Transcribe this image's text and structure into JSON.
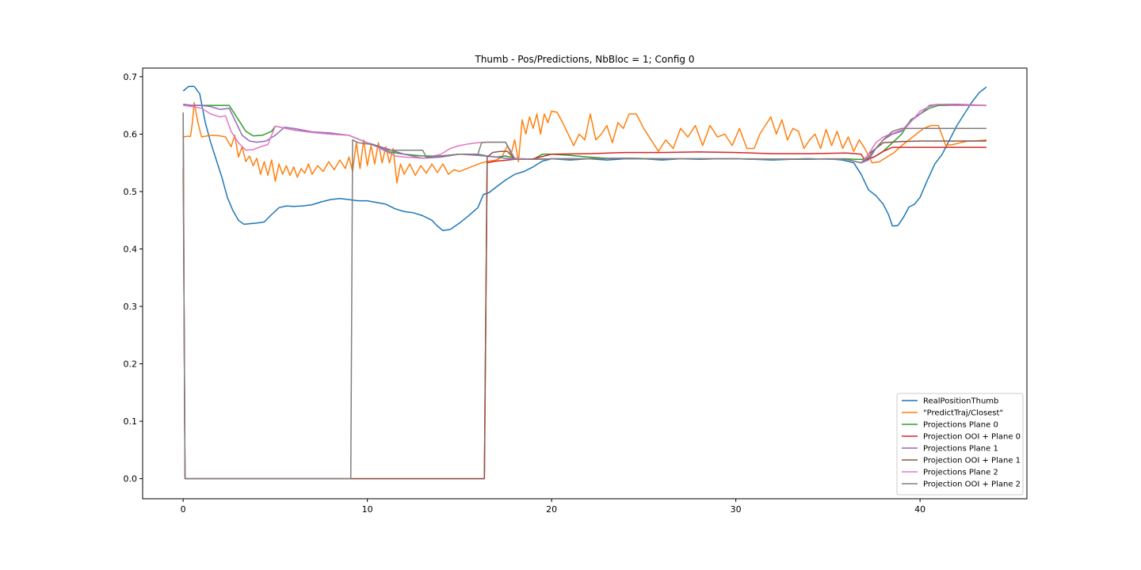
{
  "chart_data": {
    "type": "line",
    "title": "Thumb - Pos/Predictions, NbBloc = 1; Config 0",
    "xlabel": "",
    "ylabel": "",
    "xlim": [
      -2.2,
      45.8
    ],
    "ylim": [
      -0.035,
      0.715
    ],
    "xticks": [
      0,
      10,
      20,
      30,
      40
    ],
    "yticks": [
      0.0,
      0.1,
      0.2,
      0.3,
      0.4,
      0.5,
      0.6,
      0.7
    ],
    "grid": false,
    "legend_position": "lower right",
    "series": [
      {
        "name": "RealPositionThumb",
        "color": "#1f77b4",
        "x": [
          0,
          0.3,
          0.6,
          0.9,
          1.2,
          1.5,
          1.8,
          2.1,
          2.4,
          2.7,
          3.0,
          3.3,
          3.6,
          4.0,
          4.4,
          4.8,
          5.2,
          5.6,
          6.0,
          6.5,
          7.0,
          7.5,
          8.0,
          8.5,
          9.0,
          9.5,
          10.0,
          10.5,
          11.0,
          11.5,
          12.0,
          12.5,
          13.0,
          13.5,
          13.8,
          14.1,
          14.5,
          15.0,
          15.5,
          16.0,
          16.3,
          16.6,
          17.0,
          17.5,
          18.0,
          18.5,
          19.0,
          19.5,
          20.0,
          21.0,
          22.0,
          23.0,
          24.0,
          25.0,
          26.0,
          27.0,
          28.0,
          29.0,
          30.0,
          31.0,
          32.0,
          33.0,
          34.0,
          35.0,
          35.8,
          36.4,
          36.8,
          37.2,
          37.6,
          38.0,
          38.3,
          38.5,
          38.8,
          39.1,
          39.4,
          39.7,
          40.0,
          40.4,
          40.8,
          41.2,
          41.6,
          42.0,
          42.4,
          42.8,
          43.2,
          43.6
        ],
        "values": [
          0.675,
          0.683,
          0.683,
          0.67,
          0.62,
          0.585,
          0.555,
          0.525,
          0.49,
          0.467,
          0.45,
          0.443,
          0.444,
          0.445,
          0.447,
          0.46,
          0.472,
          0.475,
          0.474,
          0.475,
          0.477,
          0.482,
          0.486,
          0.488,
          0.486,
          0.484,
          0.484,
          0.481,
          0.478,
          0.47,
          0.465,
          0.463,
          0.458,
          0.45,
          0.44,
          0.432,
          0.434,
          0.445,
          0.458,
          0.472,
          0.495,
          0.498,
          0.508,
          0.52,
          0.53,
          0.535,
          0.543,
          0.553,
          0.557,
          0.555,
          0.557,
          0.555,
          0.557,
          0.557,
          0.555,
          0.557,
          0.556,
          0.557,
          0.557,
          0.556,
          0.555,
          0.556,
          0.556,
          0.557,
          0.555,
          0.55,
          0.53,
          0.503,
          0.493,
          0.478,
          0.459,
          0.44,
          0.441,
          0.455,
          0.473,
          0.478,
          0.49,
          0.52,
          0.548,
          0.565,
          0.59,
          0.615,
          0.635,
          0.655,
          0.672,
          0.682
        ]
      },
      {
        "name": "\"PredictTraj/Closest\"",
        "color": "#ff7f0e",
        "x": [
          0,
          0.2,
          0.4,
          0.5,
          0.6,
          0.8,
          1.0,
          1.3,
          1.6,
          2.0,
          2.3,
          2.6,
          2.8,
          3.0,
          3.2,
          3.4,
          3.6,
          3.8,
          4.0,
          4.2,
          4.4,
          4.6,
          4.8,
          5.0,
          5.2,
          5.4,
          5.6,
          5.8,
          6.0,
          6.2,
          6.4,
          6.6,
          6.8,
          7.0,
          7.3,
          7.6,
          7.9,
          8.2,
          8.5,
          8.8,
          9.0,
          9.2,
          9.4,
          9.6,
          9.8,
          10.0,
          10.2,
          10.4,
          10.6,
          10.8,
          11.0,
          11.2,
          11.4,
          11.6,
          11.8,
          12.0,
          12.3,
          12.6,
          12.9,
          13.2,
          13.5,
          13.8,
          14.1,
          14.4,
          14.7,
          15.0,
          15.4,
          15.8,
          16.2,
          16.6,
          17.0,
          17.3,
          17.6,
          17.8,
          18.0,
          18.2,
          18.4,
          18.6,
          18.8,
          19.0,
          19.2,
          19.4,
          19.6,
          19.8,
          20.0,
          20.3,
          20.6,
          20.9,
          21.2,
          21.5,
          21.8,
          22.1,
          22.4,
          22.7,
          23.0,
          23.3,
          23.6,
          23.9,
          24.2,
          24.6,
          25.0,
          25.4,
          25.8,
          26.2,
          26.6,
          27.0,
          27.4,
          27.8,
          28.2,
          28.6,
          29.0,
          29.4,
          29.8,
          30.2,
          30.6,
          31.0,
          31.3,
          31.6,
          31.9,
          32.2,
          32.5,
          32.8,
          33.1,
          33.4,
          33.7,
          34.0,
          34.3,
          34.6,
          34.9,
          35.2,
          35.5,
          35.8,
          36.1,
          36.4,
          36.7,
          37.0,
          37.4,
          37.8,
          38.2,
          38.6,
          39.0,
          39.4,
          39.8,
          40.2,
          40.6,
          41.0,
          41.4,
          41.8,
          42.2,
          42.6,
          43.0,
          43.6
        ],
        "values": [
          0.595,
          0.596,
          0.596,
          0.62,
          0.655,
          0.62,
          0.595,
          0.597,
          0.598,
          0.597,
          0.595,
          0.578,
          0.598,
          0.56,
          0.578,
          0.552,
          0.562,
          0.545,
          0.558,
          0.53,
          0.552,
          0.528,
          0.555,
          0.518,
          0.548,
          0.53,
          0.545,
          0.528,
          0.543,
          0.525,
          0.54,
          0.532,
          0.548,
          0.53,
          0.545,
          0.535,
          0.552,
          0.538,
          0.555,
          0.54,
          0.56,
          0.535,
          0.585,
          0.54,
          0.59,
          0.545,
          0.58,
          0.548,
          0.585,
          0.55,
          0.578,
          0.55,
          0.575,
          0.515,
          0.548,
          0.53,
          0.548,
          0.528,
          0.545,
          0.532,
          0.548,
          0.533,
          0.548,
          0.53,
          0.538,
          0.535,
          0.54,
          0.545,
          0.55,
          0.553,
          0.555,
          0.56,
          0.58,
          0.565,
          0.59,
          0.552,
          0.625,
          0.6,
          0.63,
          0.61,
          0.635,
          0.6,
          0.635,
          0.62,
          0.64,
          0.638,
          0.62,
          0.6,
          0.58,
          0.6,
          0.59,
          0.635,
          0.59,
          0.6,
          0.615,
          0.585,
          0.62,
          0.61,
          0.635,
          0.635,
          0.61,
          0.59,
          0.57,
          0.59,
          0.575,
          0.61,
          0.595,
          0.615,
          0.58,
          0.615,
          0.595,
          0.6,
          0.58,
          0.61,
          0.575,
          0.575,
          0.6,
          0.615,
          0.63,
          0.6,
          0.625,
          0.59,
          0.61,
          0.605,
          0.575,
          0.59,
          0.6,
          0.575,
          0.608,
          0.58,
          0.605,
          0.575,
          0.595,
          0.57,
          0.59,
          0.575,
          0.55,
          0.552,
          0.56,
          0.568,
          0.58,
          0.59,
          0.6,
          0.61,
          0.615,
          0.615,
          0.58,
          0.582,
          0.585,
          0.588,
          0.588,
          0.59
        ]
      },
      {
        "name": "Projections Plane 0",
        "color": "#2ca02c",
        "x": [
          0,
          0.3,
          1.0,
          2.0,
          2.5,
          3.0,
          3.4,
          3.8,
          4.3,
          4.8,
          5.0,
          6.0,
          7.0,
          8.0,
          9.0,
          10.0,
          10.5,
          11.0,
          12.0,
          13.0,
          14.0,
          15.0,
          16.0,
          16.5,
          17.0,
          17.5,
          18.0,
          19.0,
          19.5,
          20.0,
          21.0,
          22.0,
          23.0,
          25.0,
          27.0,
          29.0,
          31.0,
          33.0,
          35.0,
          36.0,
          36.5,
          37.0,
          37.5,
          38.0,
          38.5,
          39.0,
          39.5,
          40.0,
          40.5,
          41.0,
          42.0,
          43.6
        ],
        "values": [
          0.652,
          0.65,
          0.65,
          0.65,
          0.65,
          0.625,
          0.605,
          0.597,
          0.598,
          0.605,
          0.614,
          0.607,
          0.603,
          0.6,
          0.598,
          0.585,
          0.58,
          0.57,
          0.565,
          0.562,
          0.562,
          0.565,
          0.565,
          0.562,
          0.56,
          0.562,
          0.558,
          0.556,
          0.565,
          0.565,
          0.563,
          0.56,
          0.558,
          0.557,
          0.557,
          0.557,
          0.557,
          0.556,
          0.557,
          0.557,
          0.556,
          0.556,
          0.56,
          0.57,
          0.585,
          0.6,
          0.625,
          0.635,
          0.645,
          0.65,
          0.65,
          0.65
        ]
      },
      {
        "name": "Projection OOI + Plane 0",
        "color": "#d62728",
        "x": [
          0,
          0.05,
          0.1,
          1.0,
          5.0,
          10.0,
          14.0,
          16.0,
          16.2,
          16.35,
          16.5,
          17.0,
          18.0,
          19.0,
          20.0,
          22.0,
          24.0,
          26.0,
          28.0,
          30.0,
          32.0,
          34.0,
          36.0,
          36.8,
          37.0,
          37.5,
          38.0,
          38.5,
          40.0,
          42.0,
          43.6
        ],
        "values": [
          0.54,
          0.3,
          0.0,
          0.0,
          0.0,
          0.0,
          0.0,
          0.0,
          0.0,
          0.0,
          0.55,
          0.553,
          0.556,
          0.557,
          0.565,
          0.566,
          0.568,
          0.568,
          0.569,
          0.568,
          0.566,
          0.566,
          0.567,
          0.565,
          0.555,
          0.56,
          0.57,
          0.577,
          0.577,
          0.577,
          0.577
        ]
      },
      {
        "name": "Projections Plane 1",
        "color": "#9467bd",
        "x": [
          0,
          0.5,
          1.0,
          1.5,
          2.0,
          2.5,
          2.8,
          3.2,
          3.6,
          4.0,
          4.5,
          5.0,
          5.5,
          6.0,
          7.0,
          8.0,
          9.0,
          10.0,
          10.5,
          11.0,
          12.0,
          13.0,
          14.0,
          15.0,
          16.0,
          17.0,
          17.5,
          18.0,
          19.0,
          20.0,
          22.0,
          24.0,
          26.0,
          28.0,
          30.0,
          32.0,
          34.0,
          36.0,
          36.8,
          37.2,
          37.6,
          38.0,
          38.5,
          39.0,
          39.4,
          39.8,
          40.2,
          40.5,
          41.0,
          42.0,
          43.6
        ],
        "values": [
          0.652,
          0.65,
          0.65,
          0.648,
          0.643,
          0.645,
          0.625,
          0.598,
          0.588,
          0.586,
          0.588,
          0.598,
          0.612,
          0.61,
          0.604,
          0.602,
          0.598,
          0.585,
          0.58,
          0.575,
          0.565,
          0.558,
          0.56,
          0.565,
          0.563,
          0.56,
          0.558,
          0.556,
          0.556,
          0.557,
          0.557,
          0.558,
          0.557,
          0.557,
          0.557,
          0.556,
          0.557,
          0.556,
          0.55,
          0.555,
          0.575,
          0.59,
          0.6,
          0.605,
          0.62,
          0.63,
          0.64,
          0.65,
          0.652,
          0.652,
          0.65
        ]
      },
      {
        "name": "Projection OOI + Plane 1",
        "color": "#8c564b",
        "x": [
          0,
          0.05,
          0.1,
          1.0,
          5.0,
          10.0,
          14.0,
          16.0,
          16.2,
          16.35,
          16.5,
          16.8,
          17.2,
          17.6,
          18.0,
          19.0,
          20.0,
          22.0,
          24.0,
          26.0,
          28.0,
          30.0,
          32.0,
          34.0,
          36.0,
          36.8,
          37.2,
          37.6,
          38.0,
          39.0,
          40.0,
          42.0,
          43.6
        ],
        "values": [
          0.635,
          0.3,
          0.0,
          0.0,
          0.0,
          0.0,
          0.0,
          0.0,
          0.0,
          0.0,
          0.56,
          0.568,
          0.57,
          0.57,
          0.556,
          0.556,
          0.557,
          0.557,
          0.558,
          0.557,
          0.557,
          0.557,
          0.556,
          0.557,
          0.556,
          0.55,
          0.565,
          0.575,
          0.585,
          0.587,
          0.588,
          0.588,
          0.588
        ]
      },
      {
        "name": "Projections Plane 2",
        "color": "#e377c2",
        "x": [
          0,
          0.5,
          1.0,
          1.5,
          2.0,
          2.3,
          2.6,
          3.0,
          3.4,
          3.8,
          4.2,
          4.6,
          5.0,
          6.0,
          7.0,
          8.0,
          9.0,
          10.0,
          10.5,
          11.0,
          11.5,
          12.0,
          13.0,
          14.0,
          14.5,
          15.0,
          15.5,
          16.0,
          16.5,
          17.0,
          17.5,
          18.0,
          19.0,
          20.0,
          22.0,
          24.0,
          26.0,
          28.0,
          30.0,
          32.0,
          34.0,
          36.0,
          36.8,
          37.2,
          37.6,
          38.0,
          38.4,
          38.8,
          39.2,
          39.6,
          40.0,
          40.5,
          41.0,
          42.0,
          43.6
        ],
        "values": [
          0.65,
          0.648,
          0.645,
          0.635,
          0.63,
          0.632,
          0.605,
          0.585,
          0.572,
          0.573,
          0.578,
          0.582,
          0.614,
          0.607,
          0.603,
          0.6,
          0.598,
          0.585,
          0.578,
          0.57,
          0.562,
          0.56,
          0.558,
          0.565,
          0.575,
          0.58,
          0.583,
          0.585,
          0.586,
          0.586,
          0.586,
          0.558,
          0.556,
          0.557,
          0.557,
          0.558,
          0.557,
          0.557,
          0.557,
          0.556,
          0.557,
          0.556,
          0.55,
          0.565,
          0.585,
          0.595,
          0.6,
          0.605,
          0.61,
          0.625,
          0.64,
          0.648,
          0.652,
          0.65,
          0.65
        ]
      },
      {
        "name": "Projection OOI + Plane 2",
        "color": "#7f7f7f",
        "x": [
          0,
          0.05,
          0.1,
          1.0,
          5.0,
          9.0,
          9.1,
          9.2,
          9.5,
          10.0,
          10.5,
          11.0,
          12.0,
          13.0,
          13.2,
          14.0,
          15.0,
          16.0,
          16.2,
          16.4,
          17.0,
          17.5,
          18.0,
          19.0,
          20.0,
          22.0,
          24.0,
          26.0,
          28.0,
          30.0,
          32.0,
          34.0,
          36.0,
          36.8,
          37.2,
          37.6,
          38.0,
          38.5,
          39.0,
          40.0,
          42.0,
          43.6
        ],
        "values": [
          0.638,
          0.3,
          0.0,
          0.0,
          0.0,
          0.0,
          0.0,
          0.59,
          0.585,
          0.583,
          0.58,
          0.572,
          0.572,
          0.572,
          0.56,
          0.562,
          0.565,
          0.565,
          0.585,
          0.586,
          0.586,
          0.586,
          0.556,
          0.556,
          0.557,
          0.557,
          0.558,
          0.557,
          0.557,
          0.557,
          0.556,
          0.557,
          0.556,
          0.55,
          0.56,
          0.575,
          0.59,
          0.605,
          0.61,
          0.61,
          0.61,
          0.61
        ]
      }
    ]
  }
}
